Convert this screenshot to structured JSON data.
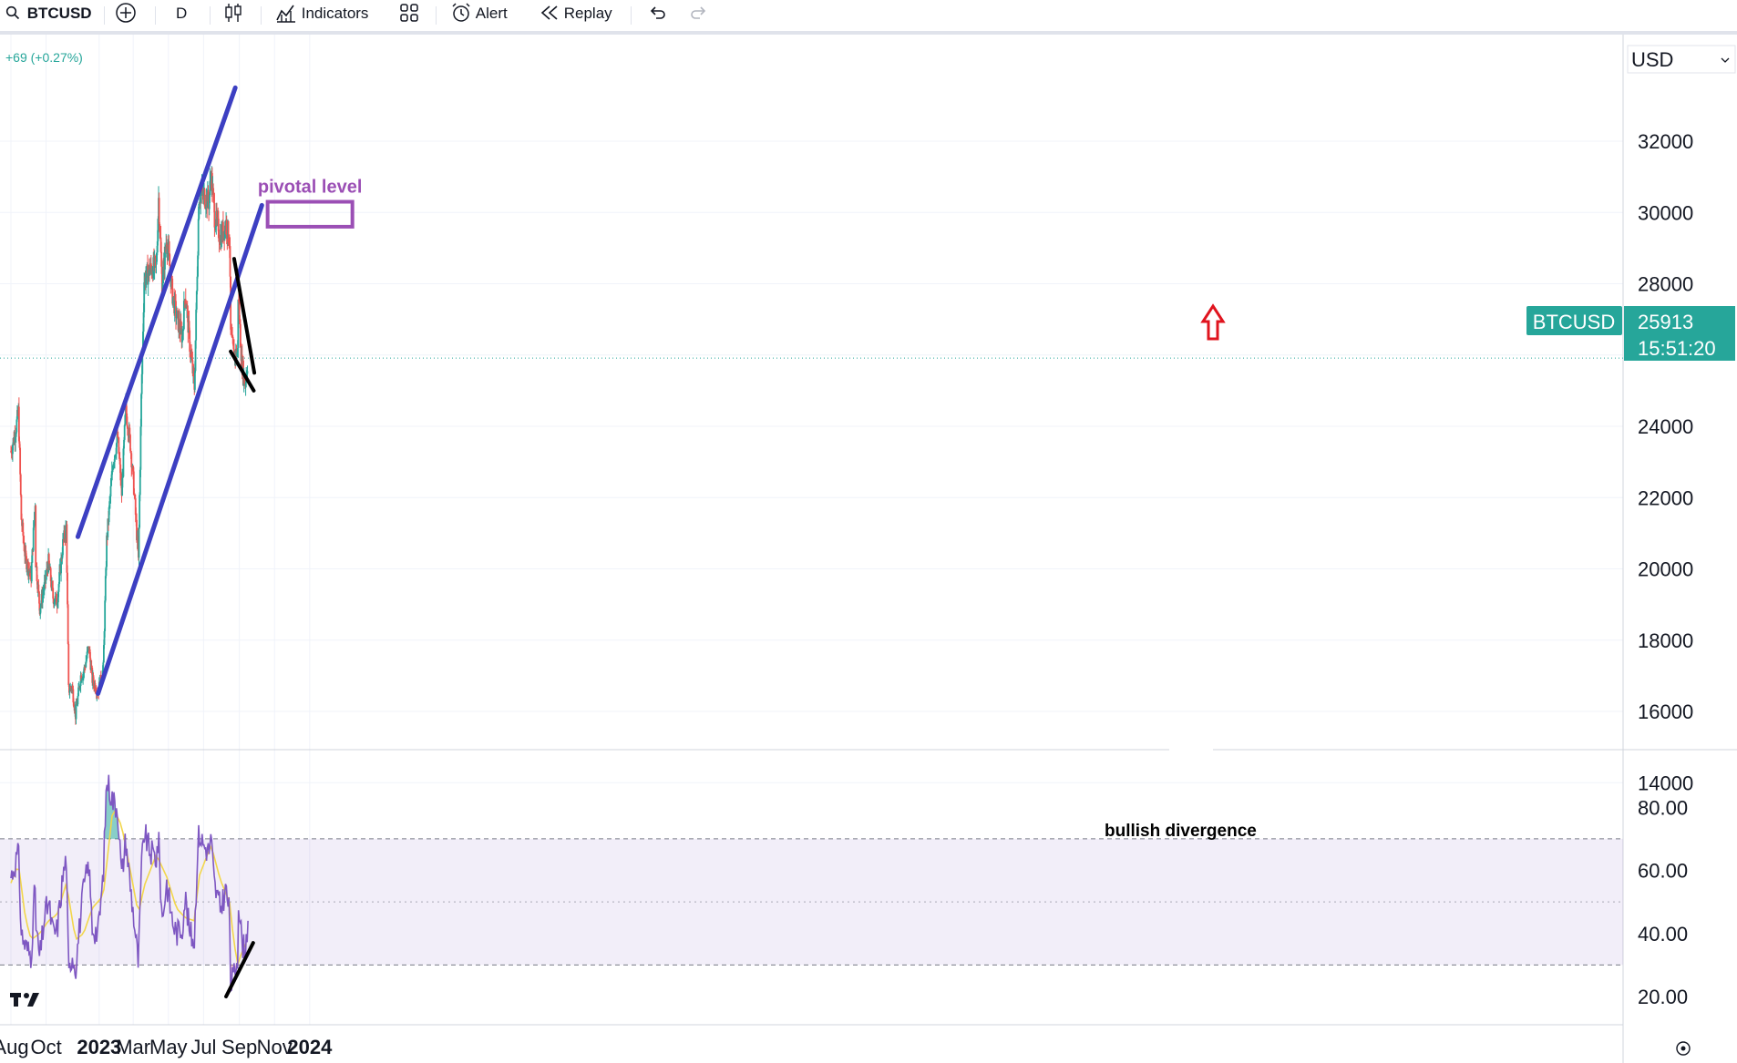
{
  "toolbar": {
    "symbol": "BTCUSD",
    "interval": "D",
    "indicators_label": "Indicators",
    "alert_label": "Alert",
    "replay_label": "Replay"
  },
  "header": {
    "change": "+69 (+0.27%)",
    "currency": "USD"
  },
  "price_tag": {
    "symbol": "BTCUSD",
    "price": "25913",
    "countdown": "15:51:20",
    "color": "#26a69a"
  },
  "annotations": {
    "pivotal_level": "pivotal level",
    "bullish_divergence": "bullish divergence"
  },
  "colors": {
    "up": "#26a69a",
    "down": "#ef5350",
    "channel": "#3c3fc2",
    "pivotal": "#9b4fb5",
    "rsi": "#7e57c2",
    "rsi_ma": "#f2d64b",
    "arrow": "#e0141e"
  },
  "chart_data": [
    {
      "type": "candlestick",
      "x_ticks": [
        "Aug",
        "Oct",
        "2023",
        "Mar",
        "May",
        "Jul",
        "Sep",
        "Nov",
        "2024"
      ],
      "y_ticks": [
        14000,
        16000,
        18000,
        20000,
        22000,
        24000,
        26000,
        28000,
        30000,
        32000
      ],
      "y_tick_labels": [
        "14000",
        "16000",
        "18000",
        "20000",
        "22000",
        "24000",
        "",
        "28000",
        "30000",
        "32000"
      ],
      "ylim": [
        13800,
        33200
      ],
      "last_price": 25913,
      "price_path": [
        [
          "2022-08-01",
          23300
        ],
        [
          "2022-08-08",
          23800
        ],
        [
          "2022-08-14",
          24400
        ],
        [
          "2022-08-19",
          21400
        ],
        [
          "2022-08-26",
          20300
        ],
        [
          "2022-09-05",
          19800
        ],
        [
          "2022-09-12",
          21900
        ],
        [
          "2022-09-13",
          20200
        ],
        [
          "2022-09-20",
          18900
        ],
        [
          "2022-09-28",
          19500
        ],
        [
          "2022-10-05",
          20200
        ],
        [
          "2022-10-13",
          19200
        ],
        [
          "2022-10-20",
          19100
        ],
        [
          "2022-10-30",
          20700
        ],
        [
          "2022-11-05",
          21200
        ],
        [
          "2022-11-09",
          16600
        ],
        [
          "2022-11-15",
          16700
        ],
        [
          "2022-11-21",
          15900
        ],
        [
          "2022-11-30",
          17000
        ],
        [
          "2022-12-05",
          17100
        ],
        [
          "2022-12-14",
          17800
        ],
        [
          "2022-12-20",
          16900
        ],
        [
          "2022-12-30",
          16550
        ],
        [
          "2023-01-08",
          17200
        ],
        [
          "2023-01-14",
          20800
        ],
        [
          "2023-01-25",
          23000
        ],
        [
          "2023-02-02",
          23700
        ],
        [
          "2023-02-09",
          22100
        ],
        [
          "2023-02-16",
          24500
        ],
        [
          "2023-02-24",
          23500
        ],
        [
          "2023-03-02",
          22300
        ],
        [
          "2023-03-10",
          20200
        ],
        [
          "2023-03-15",
          24800
        ],
        [
          "2023-03-20",
          28100
        ],
        [
          "2023-03-30",
          28400
        ],
        [
          "2023-04-10",
          28500
        ],
        [
          "2023-04-14",
          30400
        ],
        [
          "2023-04-20",
          28000
        ],
        [
          "2023-04-28",
          29300
        ],
        [
          "2023-05-08",
          27700
        ],
        [
          "2023-05-15",
          27100
        ],
        [
          "2023-05-25",
          26500
        ],
        [
          "2023-05-30",
          27800
        ],
        [
          "2023-06-07",
          26300
        ],
        [
          "2023-06-15",
          25100
        ],
        [
          "2023-06-20",
          28400
        ],
        [
          "2023-06-23",
          30500
        ],
        [
          "2023-07-01",
          30500
        ],
        [
          "2023-07-10",
          30300
        ],
        [
          "2023-07-14",
          31100
        ],
        [
          "2023-07-20",
          29900
        ],
        [
          "2023-07-30",
          29300
        ],
        [
          "2023-08-09",
          29700
        ],
        [
          "2023-08-15",
          29200
        ],
        [
          "2023-08-17",
          26600
        ],
        [
          "2023-08-22",
          26000
        ],
        [
          "2023-08-29",
          26100
        ],
        [
          "2023-08-30",
          27700
        ],
        [
          "2023-09-05",
          25800
        ],
        [
          "2023-09-11",
          25200
        ],
        [
          "2023-09-16",
          25913
        ]
      ],
      "channel_upper": [
        [
          "2022-11-25",
          20900
        ],
        [
          "2023-08-25",
          33500
        ]
      ],
      "channel_lower": [
        [
          "2022-12-30",
          16500
        ],
        [
          "2023-10-10",
          30200
        ]
      ],
      "pivotal_zone": {
        "from": "2023-10-20",
        "to": "2024-03-15",
        "low": 29600,
        "high": 30300
      },
      "triangle_upper": [
        [
          "2023-08-23",
          28700
        ],
        [
          "2023-09-27",
          25500
        ]
      ],
      "triangle_lower": [
        [
          "2023-08-17",
          26100
        ],
        [
          "2023-09-26",
          25000
        ]
      ]
    },
    {
      "type": "line",
      "name": "RSI",
      "y_ticks": [
        20,
        40,
        60,
        80
      ],
      "y_tick_labels": [
        "20.00",
        "40.00",
        "60.00",
        "80.00"
      ],
      "ylim": [
        16,
        94
      ],
      "band": [
        30,
        70
      ],
      "midline": 50,
      "rsi_path": [
        [
          "2022-08-01",
          58
        ],
        [
          "2022-08-08",
          62
        ],
        [
          "2022-08-14",
          66
        ],
        [
          "2022-08-19",
          40
        ],
        [
          "2022-08-26",
          36
        ],
        [
          "2022-09-05",
          33
        ],
        [
          "2022-09-12",
          56
        ],
        [
          "2022-09-13",
          42
        ],
        [
          "2022-09-20",
          32
        ],
        [
          "2022-09-28",
          45
        ],
        [
          "2022-10-05",
          50
        ],
        [
          "2022-10-13",
          40
        ],
        [
          "2022-10-20",
          41
        ],
        [
          "2022-10-30",
          58
        ],
        [
          "2022-11-05",
          64
        ],
        [
          "2022-11-09",
          26
        ],
        [
          "2022-11-15",
          34
        ],
        [
          "2022-11-21",
          29
        ],
        [
          "2022-11-30",
          46
        ],
        [
          "2022-12-05",
          54
        ],
        [
          "2022-12-14",
          62
        ],
        [
          "2022-12-20",
          42
        ],
        [
          "2022-12-30",
          40
        ],
        [
          "2023-01-08",
          58
        ],
        [
          "2023-01-14",
          89
        ],
        [
          "2023-01-25",
          82
        ],
        [
          "2023-02-02",
          80
        ],
        [
          "2023-02-09",
          58
        ],
        [
          "2023-02-16",
          70
        ],
        [
          "2023-02-24",
          55
        ],
        [
          "2023-03-02",
          45
        ],
        [
          "2023-03-10",
          30
        ],
        [
          "2023-03-15",
          60
        ],
        [
          "2023-03-20",
          72
        ],
        [
          "2023-03-30",
          66
        ],
        [
          "2023-04-10",
          64
        ],
        [
          "2023-04-14",
          70
        ],
        [
          "2023-04-20",
          44
        ],
        [
          "2023-04-28",
          56
        ],
        [
          "2023-05-08",
          44
        ],
        [
          "2023-05-15",
          40
        ],
        [
          "2023-05-25",
          42
        ],
        [
          "2023-05-30",
          52
        ],
        [
          "2023-06-07",
          40
        ],
        [
          "2023-06-15",
          38
        ],
        [
          "2023-06-20",
          64
        ],
        [
          "2023-06-23",
          72
        ],
        [
          "2023-07-01",
          68
        ],
        [
          "2023-07-10",
          66
        ],
        [
          "2023-07-14",
          70
        ],
        [
          "2023-07-20",
          55
        ],
        [
          "2023-07-30",
          48
        ],
        [
          "2023-08-09",
          54
        ],
        [
          "2023-08-15",
          46
        ],
        [
          "2023-08-17",
          24
        ],
        [
          "2023-08-22",
          26
        ],
        [
          "2023-08-29",
          33
        ],
        [
          "2023-08-30",
          52
        ],
        [
          "2023-09-05",
          38
        ],
        [
          "2023-09-11",
          34
        ],
        [
          "2023-09-16",
          44
        ]
      ],
      "rsi_ma_path": [
        [
          "2022-08-01",
          56
        ],
        [
          "2022-08-14",
          62
        ],
        [
          "2022-08-26",
          45
        ],
        [
          "2022-09-05",
          38
        ],
        [
          "2022-09-20",
          40
        ],
        [
          "2022-10-05",
          44
        ],
        [
          "2022-10-20",
          46
        ],
        [
          "2022-11-05",
          56
        ],
        [
          "2022-11-21",
          38
        ],
        [
          "2022-12-05",
          40
        ],
        [
          "2022-12-20",
          48
        ],
        [
          "2023-01-08",
          52
        ],
        [
          "2023-01-25",
          80
        ],
        [
          "2023-02-09",
          74
        ],
        [
          "2023-02-24",
          60
        ],
        [
          "2023-03-10",
          46
        ],
        [
          "2023-03-20",
          55
        ],
        [
          "2023-04-10",
          65
        ],
        [
          "2023-04-28",
          58
        ],
        [
          "2023-05-15",
          48
        ],
        [
          "2023-05-30",
          45
        ],
        [
          "2023-06-15",
          44
        ],
        [
          "2023-06-23",
          58
        ],
        [
          "2023-07-14",
          68
        ],
        [
          "2023-07-30",
          57
        ],
        [
          "2023-08-15",
          50
        ],
        [
          "2023-08-22",
          38
        ],
        [
          "2023-08-29",
          30
        ],
        [
          "2023-09-05",
          34
        ],
        [
          "2023-09-16",
          38
        ]
      ],
      "divergence_line": [
        [
          "2023-08-09",
          20
        ],
        [
          "2023-09-25",
          37
        ]
      ]
    }
  ]
}
